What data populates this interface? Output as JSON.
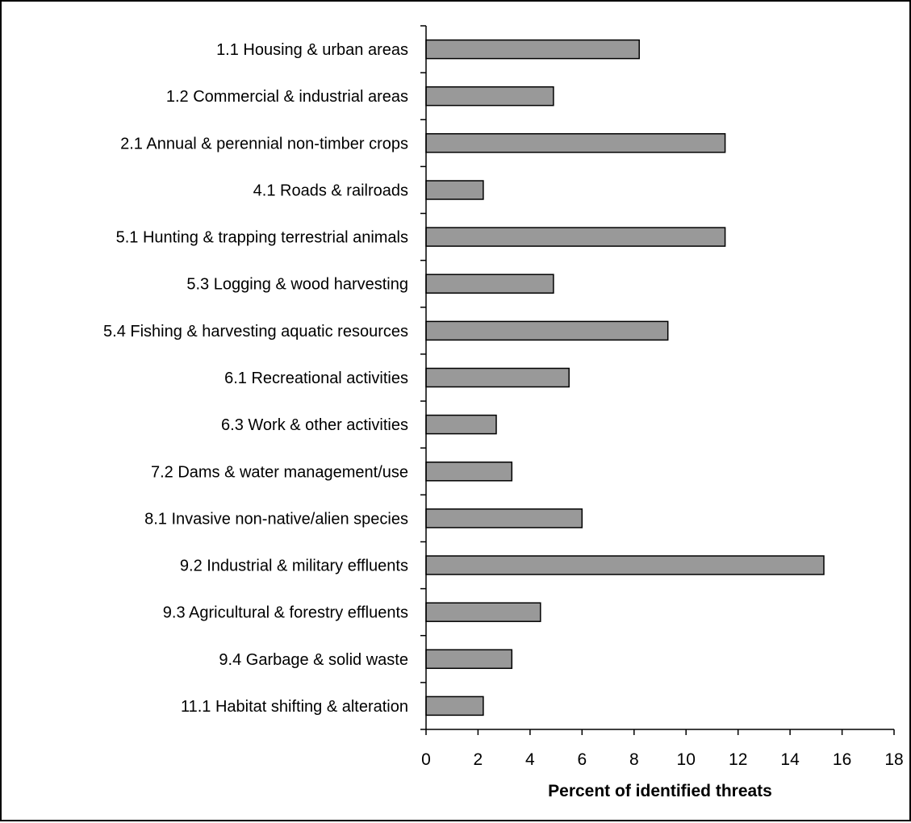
{
  "chart_data": {
    "type": "bar",
    "orientation": "horizontal",
    "categories": [
      "1.1 Housing & urban areas",
      "1.2 Commercial & industrial areas",
      "2.1 Annual & perennial non-timber crops",
      "4.1 Roads & railroads",
      "5.1 Hunting & trapping terrestrial animals",
      "5.3 Logging & wood harvesting",
      "5.4 Fishing & harvesting aquatic resources",
      "6.1 Recreational activities",
      "6.3 Work & other activities",
      "7.2 Dams & water management/use",
      "8.1 Invasive non-native/alien species",
      "9.2 Industrial & military effluents",
      "9.3 Agricultural & forestry effluents",
      "9.4 Garbage & solid waste",
      "11.1 Habitat shifting & alteration"
    ],
    "values": [
      8.2,
      4.9,
      11.5,
      2.2,
      11.5,
      4.9,
      9.3,
      5.5,
      2.7,
      3.3,
      6.0,
      15.3,
      4.4,
      3.3,
      2.2
    ],
    "title": "",
    "xlabel": "Percent of identified threats",
    "ylabel": "",
    "xlim": [
      0,
      18
    ],
    "xticks": [
      "0",
      "2",
      "4",
      "6",
      "8",
      "10",
      "12",
      "14",
      "16",
      "18"
    ],
    "grid": false,
    "legend": "none",
    "bar_color": "#999999"
  }
}
